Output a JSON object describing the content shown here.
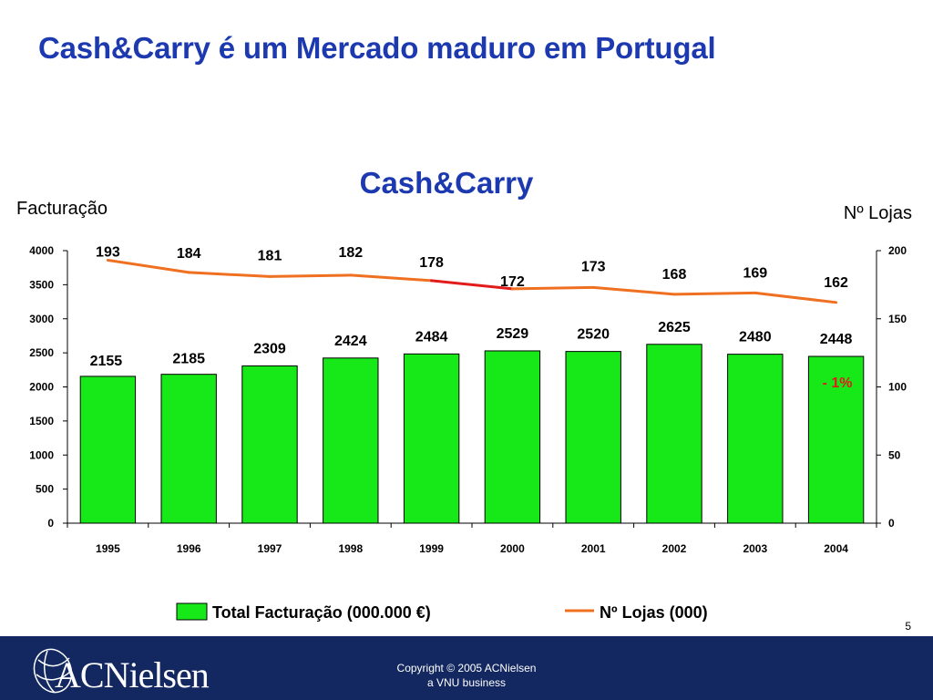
{
  "slide": {
    "title": "Cash&Carry é um Mercado maduro em Portugal",
    "page_number": "5"
  },
  "footer": {
    "logo_text": "ACNielsen",
    "copyright_line1": "Copyright © 2005 ACNielsen",
    "copyright_line2": "a VNU business"
  },
  "colors": {
    "title": "#1c39b0",
    "bar_fill": "#17e817",
    "line": "#f07022",
    "line_highlight": "#e21b1b",
    "footer_bg": "#132860"
  },
  "chart_data": {
    "type": "bar",
    "title": "Cash&Carry",
    "ylabel_left": "Facturação",
    "ylabel_right": "Nº Lojas",
    "categories": [
      "1995",
      "1996",
      "1997",
      "1998",
      "1999",
      "2000",
      "2001",
      "2002",
      "2003",
      "2004"
    ],
    "ylim_left": [
      0,
      4000
    ],
    "yticks_left": [
      0,
      500,
      1000,
      1500,
      2000,
      2500,
      3000,
      3500,
      4000
    ],
    "ylim_right": [
      0,
      200
    ],
    "yticks_right": [
      0,
      50,
      100,
      150,
      200
    ],
    "series": [
      {
        "name": "Total Facturação (000.000 €)",
        "type": "bar",
        "axis": "left",
        "values": [
          2155,
          2185,
          2309,
          2424,
          2484,
          2529,
          2520,
          2625,
          2480,
          2448
        ]
      },
      {
        "name": "Nº Lojas (000)",
        "type": "line",
        "axis": "right",
        "values": [
          193,
          184,
          181,
          182,
          178,
          172,
          173,
          168,
          169,
          162
        ]
      }
    ],
    "highlight_segment": {
      "from": "1999",
      "to": "2000"
    },
    "annotation": "- 1%",
    "legend_position": "bottom",
    "grid": false
  }
}
